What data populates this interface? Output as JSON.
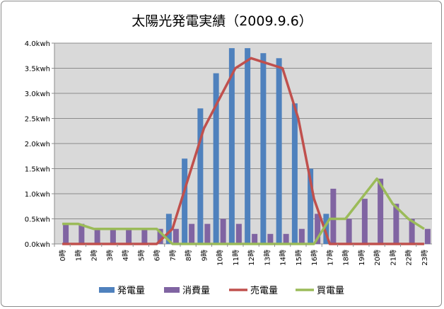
{
  "chart_data": {
    "type": "bar",
    "title": "太陽光発電実績（2009.9.6）",
    "categories": [
      "0時",
      "1時",
      "2時",
      "3時",
      "4時",
      "5時",
      "6時",
      "7時",
      "8時",
      "9時",
      "10時",
      "11時",
      "12時",
      "13時",
      "14時",
      "15時",
      "16時",
      "17時",
      "18時",
      "19時",
      "20時",
      "21時",
      "22時",
      "23時"
    ],
    "ylim": [
      0,
      4.0
    ],
    "yticks": [
      "0.0kwh",
      "0.5kwh",
      "1.0kwh",
      "1.5kwh",
      "2.0kwh",
      "2.5kwh",
      "3.0kwh",
      "3.5kwh",
      "4.0kwh"
    ],
    "grid": true,
    "legend_position": "bottom",
    "series": [
      {
        "name": "発電量",
        "type": "bar",
        "color": "#4f81bd",
        "values": [
          0,
          0,
          0,
          0,
          0,
          0,
          0,
          0.6,
          1.7,
          2.7,
          3.4,
          3.9,
          3.9,
          3.8,
          3.7,
          2.8,
          1.5,
          0.6,
          0,
          0,
          0,
          0,
          0,
          0
        ]
      },
      {
        "name": "消費量",
        "type": "bar",
        "color": "#8064a2",
        "values": [
          0.4,
          0.4,
          0.3,
          0.3,
          0.3,
          0.3,
          0.3,
          0.3,
          0.4,
          0.4,
          0.5,
          0.4,
          0.2,
          0.2,
          0.2,
          0.3,
          0.6,
          1.1,
          0.5,
          0.9,
          1.3,
          0.8,
          0.5,
          0.3
        ]
      },
      {
        "name": "売電量",
        "type": "line",
        "color": "#c0504d",
        "values": [
          0,
          0,
          0,
          0,
          0,
          0,
          0,
          0.3,
          1.3,
          2.3,
          2.9,
          3.5,
          3.7,
          3.6,
          3.5,
          2.5,
          0.9,
          0,
          0,
          0,
          0,
          0,
          0,
          0
        ]
      },
      {
        "name": "買電量",
        "type": "line",
        "color": "#9bbb59",
        "values": [
          0.4,
          0.4,
          0.3,
          0.3,
          0.3,
          0.3,
          0.3,
          0,
          0,
          0,
          0,
          0,
          0,
          0,
          0,
          0,
          0,
          0.5,
          0.5,
          0.9,
          1.3,
          0.8,
          0.5,
          0.3
        ]
      }
    ]
  }
}
